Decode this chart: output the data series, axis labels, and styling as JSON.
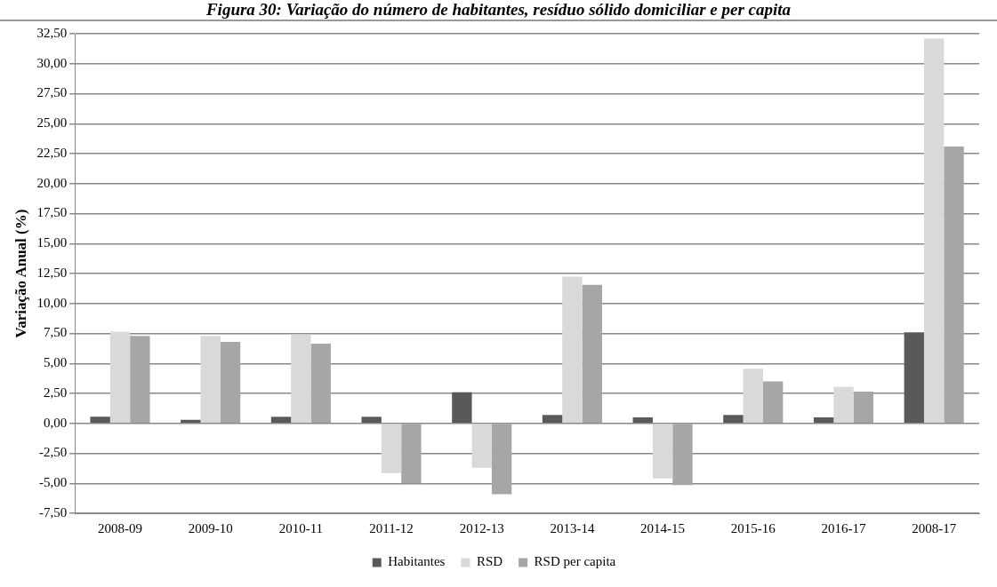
{
  "chart_data": {
    "type": "bar",
    "title": "Figura 30: Variação do número de habitantes, resíduo sólido domiciliar e per capita",
    "ylabel": "Variação Anual (%)",
    "categories": [
      "2008-09",
      "2009-10",
      "2010-11",
      "2011-12",
      "2012-13",
      "2013-14",
      "2014-15",
      "2015-16",
      "2016-17",
      "2008-17"
    ],
    "series": [
      {
        "name": "Habitantes",
        "color": "#595959",
        "values": [
          0.55,
          0.3,
          0.55,
          0.55,
          2.6,
          0.7,
          0.5,
          0.7,
          0.5,
          7.6
        ]
      },
      {
        "name": "RSD",
        "color": "#d9d9d9",
        "values": [
          7.65,
          7.3,
          7.4,
          -4.15,
          -3.7,
          12.25,
          -4.6,
          4.55,
          3.05,
          32.1
        ]
      },
      {
        "name": "RSD per capita",
        "color": "#a6a6a6",
        "values": [
          7.3,
          6.8,
          6.65,
          -5.0,
          -5.9,
          11.55,
          -5.15,
          3.5,
          2.65,
          23.1
        ]
      }
    ],
    "ylim": [
      -7.5,
      32.5
    ],
    "yticks": [
      {
        "value": -7.5,
        "label": "-7,50"
      },
      {
        "value": -5,
        "label": "-5,00"
      },
      {
        "value": -2.5,
        "label": "-2,50"
      },
      {
        "value": 0,
        "label": "0,00"
      },
      {
        "value": 2.5,
        "label": "2,50"
      },
      {
        "value": 5,
        "label": "5,00"
      },
      {
        "value": 7.5,
        "label": "7,50"
      },
      {
        "value": 10,
        "label": "10,00"
      },
      {
        "value": 12.5,
        "label": "12,50"
      },
      {
        "value": 15,
        "label": "15,00"
      },
      {
        "value": 17.5,
        "label": "17,50"
      },
      {
        "value": 20,
        "label": "20,00"
      },
      {
        "value": 22.5,
        "label": "22,50"
      },
      {
        "value": 25,
        "label": "25,00"
      },
      {
        "value": 27.5,
        "label": "27,50"
      },
      {
        "value": 30,
        "label": "30,00"
      },
      {
        "value": 32.5,
        "label": "32,50"
      }
    ],
    "grid": "y",
    "legend": "bottom"
  }
}
